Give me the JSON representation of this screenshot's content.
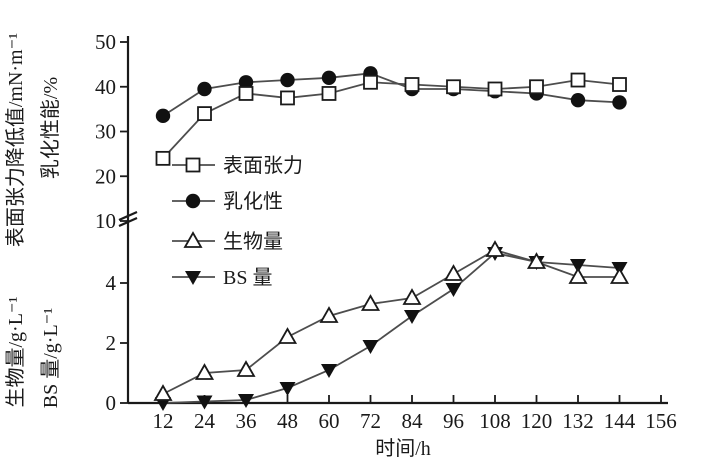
{
  "chart_data": {
    "type": "line",
    "title": "",
    "xlabel": "时间/h",
    "x": [
      12,
      24,
      36,
      48,
      60,
      72,
      84,
      96,
      108,
      120,
      132,
      144
    ],
    "x_ticks": [
      12,
      24,
      36,
      48,
      60,
      72,
      84,
      96,
      108,
      120,
      132,
      144,
      156
    ],
    "axis": {
      "broken_y_axis": true,
      "upper_ticks": [
        10,
        20,
        30,
        40,
        50
      ],
      "upper_range": [
        10,
        50
      ],
      "lower_ticks": [
        0,
        2,
        4
      ],
      "lower_range": [
        0,
        6
      ],
      "grid": false
    },
    "ylabels": {
      "outer_upper": "表面张力降低值/mN·m⁻¹",
      "inner_upper": "乳化性能/%",
      "outer_lower": "生物量/g·L⁻¹",
      "inner_lower": "BS 量/g·L⁻¹"
    },
    "legend_position": "upper-left-inside",
    "series": [
      {
        "id": "surface-tension",
        "name": "表面张力",
        "axis": "upper",
        "marker": "square-open",
        "values": [
          24,
          34,
          38.5,
          37.5,
          38.5,
          41,
          40.5,
          40,
          39.5,
          40,
          41.5,
          40.5
        ]
      },
      {
        "id": "emulsification",
        "name": "乳化性",
        "axis": "upper",
        "marker": "circle-filled",
        "values": [
          33.5,
          39.5,
          41,
          41.5,
          42,
          43,
          39.5,
          39.5,
          39,
          38.5,
          37,
          36.5
        ]
      },
      {
        "id": "biomass",
        "name": "生物量",
        "axis": "lower",
        "marker": "triangle-open",
        "values": [
          0.3,
          1.0,
          1.1,
          2.2,
          2.9,
          3.3,
          3.5,
          4.3,
          5.1,
          4.7,
          4.2,
          4.2
        ]
      },
      {
        "id": "bs-amount",
        "name": "BS 量",
        "axis": "lower",
        "marker": "triangle-down-filled",
        "values": [
          0,
          0.05,
          0.1,
          0.5,
          1.1,
          1.9,
          2.9,
          3.8,
          5.0,
          4.7,
          4.6,
          4.5
        ]
      }
    ],
    "colors": {
      "line": "#4d4d4d",
      "marker_stroke": "#1a1a1a",
      "marker_fill_dark": "#111111",
      "marker_fill_open": "#ffffff",
      "text": "#1a1a1a",
      "background": "#ffffff"
    }
  }
}
